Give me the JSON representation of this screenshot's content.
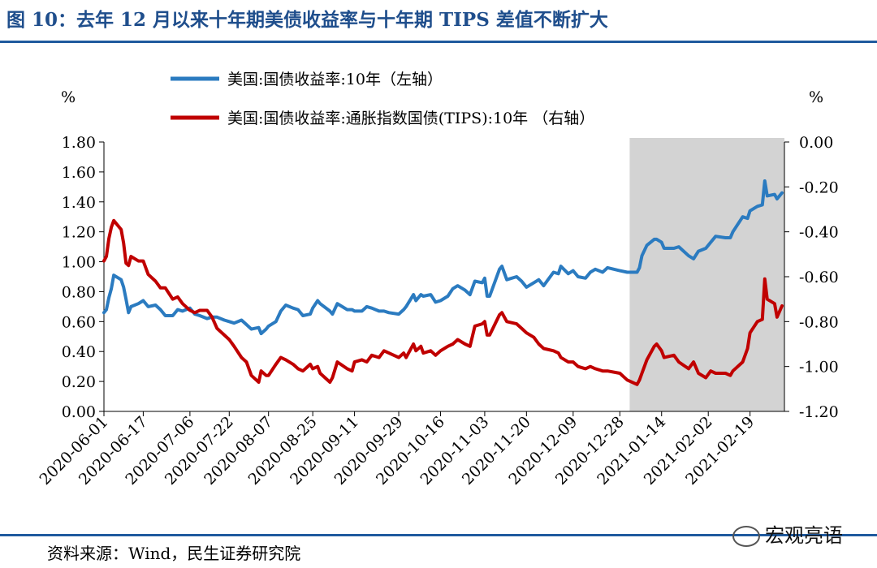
{
  "title": "图 10：去年 12 月以来十年期美债收益率与十年期 TIPS 差值不断扩大",
  "source": "资料来源：Wind，民生证券研究院",
  "watermark": "宏观亮语",
  "colors": {
    "blue": "#2b7bc0",
    "red": "#c00000",
    "shade": "#d3d3d3",
    "title": "#1f4e8c"
  },
  "chart_data": {
    "type": "line",
    "left_axis": {
      "unit": "%",
      "ylim": [
        0,
        1.8
      ],
      "ticks": [
        "0.00",
        "0.20",
        "0.40",
        "0.60",
        "0.80",
        "1.00",
        "1.20",
        "1.40",
        "1.60",
        "1.80"
      ]
    },
    "right_axis": {
      "unit": "%",
      "ylim": [
        -1.2,
        0
      ],
      "ticks": [
        "-1.20",
        "-1.00",
        "-0.80",
        "-0.60",
        "-0.40",
        "-0.20",
        "0.00"
      ]
    },
    "x_ticks": [
      "2020-06-01",
      "2020-06-17",
      "2020-07-06",
      "2020-07-22",
      "2020-08-07",
      "2020-08-25",
      "2020-09-11",
      "2020-09-29",
      "2020-10-16",
      "2020-11-03",
      "2020-11-20",
      "2020-12-09",
      "2020-12-28",
      "2021-01-14",
      "2021-02-02",
      "2021-02-19"
    ],
    "shaded_region": [
      "2021-01-01",
      "2021-03-05"
    ],
    "legend_position": "top-center",
    "grid": false,
    "series": [
      {
        "name": "美国:国债收益率:10年（左轴）",
        "axis": "left",
        "color": "#2b7bc0",
        "points": [
          [
            "2020-06-01",
            0.66
          ],
          [
            "2020-06-02",
            0.68
          ],
          [
            "2020-06-03",
            0.76
          ],
          [
            "2020-06-04",
            0.82
          ],
          [
            "2020-06-05",
            0.91
          ],
          [
            "2020-06-08",
            0.88
          ],
          [
            "2020-06-09",
            0.83
          ],
          [
            "2020-06-10",
            0.75
          ],
          [
            "2020-06-11",
            0.66
          ],
          [
            "2020-06-12",
            0.7
          ],
          [
            "2020-06-15",
            0.72
          ],
          [
            "2020-06-17",
            0.74
          ],
          [
            "2020-06-19",
            0.7
          ],
          [
            "2020-06-22",
            0.71
          ],
          [
            "2020-06-24",
            0.68
          ],
          [
            "2020-06-26",
            0.64
          ],
          [
            "2020-06-29",
            0.64
          ],
          [
            "2020-07-01",
            0.68
          ],
          [
            "2020-07-03",
            0.67
          ],
          [
            "2020-07-06",
            0.69
          ],
          [
            "2020-07-08",
            0.65
          ],
          [
            "2020-07-10",
            0.64
          ],
          [
            "2020-07-13",
            0.62
          ],
          [
            "2020-07-15",
            0.63
          ],
          [
            "2020-07-17",
            0.63
          ],
          [
            "2020-07-20",
            0.61
          ],
          [
            "2020-07-22",
            0.6
          ],
          [
            "2020-07-24",
            0.59
          ],
          [
            "2020-07-27",
            0.61
          ],
          [
            "2020-07-29",
            0.58
          ],
          [
            "2020-07-31",
            0.55
          ],
          [
            "2020-08-03",
            0.56
          ],
          [
            "2020-08-04",
            0.52
          ],
          [
            "2020-08-06",
            0.55
          ],
          [
            "2020-08-07",
            0.57
          ],
          [
            "2020-08-10",
            0.6
          ],
          [
            "2020-08-12",
            0.67
          ],
          [
            "2020-08-14",
            0.71
          ],
          [
            "2020-08-17",
            0.69
          ],
          [
            "2020-08-19",
            0.68
          ],
          [
            "2020-08-21",
            0.64
          ],
          [
            "2020-08-24",
            0.65
          ],
          [
            "2020-08-25",
            0.69
          ],
          [
            "2020-08-27",
            0.74
          ],
          [
            "2020-08-28",
            0.72
          ],
          [
            "2020-09-01",
            0.67
          ],
          [
            "2020-09-02",
            0.65
          ],
          [
            "2020-09-04",
            0.72
          ],
          [
            "2020-09-08",
            0.68
          ],
          [
            "2020-09-10",
            0.68
          ],
          [
            "2020-09-11",
            0.67
          ],
          [
            "2020-09-14",
            0.67
          ],
          [
            "2020-09-16",
            0.7
          ],
          [
            "2020-09-18",
            0.69
          ],
          [
            "2020-09-21",
            0.67
          ],
          [
            "2020-09-23",
            0.67
          ],
          [
            "2020-09-25",
            0.66
          ],
          [
            "2020-09-29",
            0.65
          ],
          [
            "2020-10-01",
            0.68
          ],
          [
            "2020-10-02",
            0.7
          ],
          [
            "2020-10-05",
            0.78
          ],
          [
            "2020-10-06",
            0.74
          ],
          [
            "2020-10-08",
            0.78
          ],
          [
            "2020-10-09",
            0.77
          ],
          [
            "2020-10-12",
            0.78
          ],
          [
            "2020-10-14",
            0.73
          ],
          [
            "2020-10-16",
            0.74
          ],
          [
            "2020-10-19",
            0.77
          ],
          [
            "2020-10-21",
            0.82
          ],
          [
            "2020-10-23",
            0.84
          ],
          [
            "2020-10-26",
            0.81
          ],
          [
            "2020-10-28",
            0.78
          ],
          [
            "2020-10-30",
            0.87
          ],
          [
            "2020-11-02",
            0.86
          ],
          [
            "2020-11-03",
            0.89
          ],
          [
            "2020-11-04",
            0.77
          ],
          [
            "2020-11-05",
            0.77
          ],
          [
            "2020-11-09",
            0.95
          ],
          [
            "2020-11-10",
            0.97
          ],
          [
            "2020-11-12",
            0.88
          ],
          [
            "2020-11-16",
            0.9
          ],
          [
            "2020-11-18",
            0.87
          ],
          [
            "2020-11-20",
            0.83
          ],
          [
            "2020-11-23",
            0.86
          ],
          [
            "2020-11-25",
            0.88
          ],
          [
            "2020-11-27",
            0.84
          ],
          [
            "2020-12-01",
            0.93
          ],
          [
            "2020-12-03",
            0.92
          ],
          [
            "2020-12-04",
            0.97
          ],
          [
            "2020-12-07",
            0.92
          ],
          [
            "2020-12-09",
            0.94
          ],
          [
            "2020-12-11",
            0.9
          ],
          [
            "2020-12-14",
            0.89
          ],
          [
            "2020-12-16",
            0.93
          ],
          [
            "2020-12-18",
            0.95
          ],
          [
            "2020-12-21",
            0.93
          ],
          [
            "2020-12-23",
            0.96
          ],
          [
            "2020-12-28",
            0.94
          ],
          [
            "2020-12-31",
            0.93
          ],
          [
            "2021-01-04",
            0.93
          ],
          [
            "2021-01-05",
            0.96
          ],
          [
            "2021-01-06",
            1.04
          ],
          [
            "2021-01-08",
            1.11
          ],
          [
            "2021-01-11",
            1.15
          ],
          [
            "2021-01-12",
            1.15
          ],
          [
            "2021-01-14",
            1.13
          ],
          [
            "2021-01-15",
            1.09
          ],
          [
            "2021-01-19",
            1.09
          ],
          [
            "2021-01-21",
            1.1
          ],
          [
            "2021-01-25",
            1.04
          ],
          [
            "2021-01-27",
            1.02
          ],
          [
            "2021-01-29",
            1.07
          ],
          [
            "2021-02-01",
            1.09
          ],
          [
            "2021-02-03",
            1.13
          ],
          [
            "2021-02-05",
            1.17
          ],
          [
            "2021-02-09",
            1.16
          ],
          [
            "2021-02-11",
            1.16
          ],
          [
            "2021-02-12",
            1.2
          ],
          [
            "2021-02-16",
            1.3
          ],
          [
            "2021-02-18",
            1.29
          ],
          [
            "2021-02-19",
            1.34
          ],
          [
            "2021-02-22",
            1.37
          ],
          [
            "2021-02-24",
            1.38
          ],
          [
            "2021-02-25",
            1.54
          ],
          [
            "2021-02-26",
            1.44
          ],
          [
            "2021-03-01",
            1.45
          ],
          [
            "2021-03-02",
            1.42
          ],
          [
            "2021-03-04",
            1.46
          ]
        ]
      },
      {
        "name": "美国:国债收益率:通胀指数国债(TIPS):10年 （右轴）",
        "axis": "right",
        "color": "#c00000",
        "points": [
          [
            "2020-06-01",
            -0.53
          ],
          [
            "2020-06-02",
            -0.51
          ],
          [
            "2020-06-03",
            -0.43
          ],
          [
            "2020-06-04",
            -0.38
          ],
          [
            "2020-06-05",
            -0.35
          ],
          [
            "2020-06-08",
            -0.39
          ],
          [
            "2020-06-09",
            -0.45
          ],
          [
            "2020-06-10",
            -0.54
          ],
          [
            "2020-06-11",
            -0.55
          ],
          [
            "2020-06-12",
            -0.51
          ],
          [
            "2020-06-15",
            -0.53
          ],
          [
            "2020-06-17",
            -0.53
          ],
          [
            "2020-06-19",
            -0.59
          ],
          [
            "2020-06-22",
            -0.62
          ],
          [
            "2020-06-24",
            -0.65
          ],
          [
            "2020-06-26",
            -0.65
          ],
          [
            "2020-06-29",
            -0.7
          ],
          [
            "2020-07-01",
            -0.69
          ],
          [
            "2020-07-03",
            -0.72
          ],
          [
            "2020-07-06",
            -0.75
          ],
          [
            "2020-07-08",
            -0.76
          ],
          [
            "2020-07-10",
            -0.75
          ],
          [
            "2020-07-13",
            -0.75
          ],
          [
            "2020-07-15",
            -0.78
          ],
          [
            "2020-07-17",
            -0.83
          ],
          [
            "2020-07-20",
            -0.86
          ],
          [
            "2020-07-22",
            -0.88
          ],
          [
            "2020-07-24",
            -0.91
          ],
          [
            "2020-07-27",
            -0.96
          ],
          [
            "2020-07-29",
            -0.98
          ],
          [
            "2020-07-31",
            -1.04
          ],
          [
            "2020-08-03",
            -1.07
          ],
          [
            "2020-08-04",
            -1.02
          ],
          [
            "2020-08-06",
            -1.04
          ],
          [
            "2020-08-07",
            -1.04
          ],
          [
            "2020-08-10",
            -0.99
          ],
          [
            "2020-08-12",
            -0.96
          ],
          [
            "2020-08-14",
            -0.97
          ],
          [
            "2020-08-17",
            -0.99
          ],
          [
            "2020-08-19",
            -1.01
          ],
          [
            "2020-08-21",
            -1.02
          ],
          [
            "2020-08-24",
            -0.99
          ],
          [
            "2020-08-25",
            -1.01
          ],
          [
            "2020-08-27",
            -1.0
          ],
          [
            "2020-08-28",
            -1.03
          ],
          [
            "2020-09-01",
            -1.07
          ],
          [
            "2020-09-02",
            -1.05
          ],
          [
            "2020-09-04",
            -0.98
          ],
          [
            "2020-09-08",
            -1.01
          ],
          [
            "2020-09-10",
            -1.02
          ],
          [
            "2020-09-11",
            -0.98
          ],
          [
            "2020-09-14",
            -0.97
          ],
          [
            "2020-09-16",
            -0.98
          ],
          [
            "2020-09-18",
            -0.95
          ],
          [
            "2020-09-21",
            -0.96
          ],
          [
            "2020-09-23",
            -0.93
          ],
          [
            "2020-09-25",
            -0.94
          ],
          [
            "2020-09-29",
            -0.96
          ],
          [
            "2020-10-01",
            -0.94
          ],
          [
            "2020-10-02",
            -0.96
          ],
          [
            "2020-10-05",
            -0.9
          ],
          [
            "2020-10-06",
            -0.93
          ],
          [
            "2020-10-08",
            -0.91
          ],
          [
            "2020-10-09",
            -0.94
          ],
          [
            "2020-10-12",
            -0.93
          ],
          [
            "2020-10-14",
            -0.95
          ],
          [
            "2020-10-16",
            -0.93
          ],
          [
            "2020-10-19",
            -0.91
          ],
          [
            "2020-10-21",
            -0.9
          ],
          [
            "2020-10-23",
            -0.88
          ],
          [
            "2020-10-26",
            -0.9
          ],
          [
            "2020-10-28",
            -0.91
          ],
          [
            "2020-10-30",
            -0.82
          ],
          [
            "2020-11-02",
            -0.81
          ],
          [
            "2020-11-03",
            -0.8
          ],
          [
            "2020-11-04",
            -0.86
          ],
          [
            "2020-11-05",
            -0.86
          ],
          [
            "2020-11-09",
            -0.77
          ],
          [
            "2020-11-10",
            -0.76
          ],
          [
            "2020-11-12",
            -0.8
          ],
          [
            "2020-11-16",
            -0.81
          ],
          [
            "2020-11-18",
            -0.83
          ],
          [
            "2020-11-20",
            -0.85
          ],
          [
            "2020-11-23",
            -0.87
          ],
          [
            "2020-11-25",
            -0.9
          ],
          [
            "2020-11-27",
            -0.92
          ],
          [
            "2020-12-01",
            -0.93
          ],
          [
            "2020-12-03",
            -0.94
          ],
          [
            "2020-12-04",
            -0.96
          ],
          [
            "2020-12-07",
            -0.98
          ],
          [
            "2020-12-09",
            -0.98
          ],
          [
            "2020-12-11",
            -1.0
          ],
          [
            "2020-12-14",
            -1.01
          ],
          [
            "2020-12-16",
            -1.0
          ],
          [
            "2020-12-18",
            -1.01
          ],
          [
            "2020-12-21",
            -1.02
          ],
          [
            "2020-12-23",
            -1.02
          ],
          [
            "2020-12-28",
            -1.03
          ],
          [
            "2020-12-31",
            -1.06
          ],
          [
            "2021-01-04",
            -1.08
          ],
          [
            "2021-01-05",
            -1.06
          ],
          [
            "2021-01-06",
            -1.03
          ],
          [
            "2021-01-08",
            -0.97
          ],
          [
            "2021-01-11",
            -0.91
          ],
          [
            "2021-01-12",
            -0.9
          ],
          [
            "2021-01-14",
            -0.93
          ],
          [
            "2021-01-15",
            -0.96
          ],
          [
            "2021-01-19",
            -0.95
          ],
          [
            "2021-01-21",
            -0.98
          ],
          [
            "2021-01-25",
            -1.01
          ],
          [
            "2021-01-27",
            -0.98
          ],
          [
            "2021-01-29",
            -1.03
          ],
          [
            "2021-02-01",
            -1.05
          ],
          [
            "2021-02-03",
            -1.02
          ],
          [
            "2021-02-05",
            -1.03
          ],
          [
            "2021-02-09",
            -1.03
          ],
          [
            "2021-02-11",
            -1.04
          ],
          [
            "2021-02-12",
            -1.02
          ],
          [
            "2021-02-16",
            -0.98
          ],
          [
            "2021-02-18",
            -0.92
          ],
          [
            "2021-02-19",
            -0.85
          ],
          [
            "2021-02-22",
            -0.8
          ],
          [
            "2021-02-24",
            -0.79
          ],
          [
            "2021-02-25",
            -0.61
          ],
          [
            "2021-02-26",
            -0.7
          ],
          [
            "2021-03-01",
            -0.72
          ],
          [
            "2021-03-02",
            -0.78
          ],
          [
            "2021-03-04",
            -0.73
          ]
        ]
      }
    ]
  }
}
